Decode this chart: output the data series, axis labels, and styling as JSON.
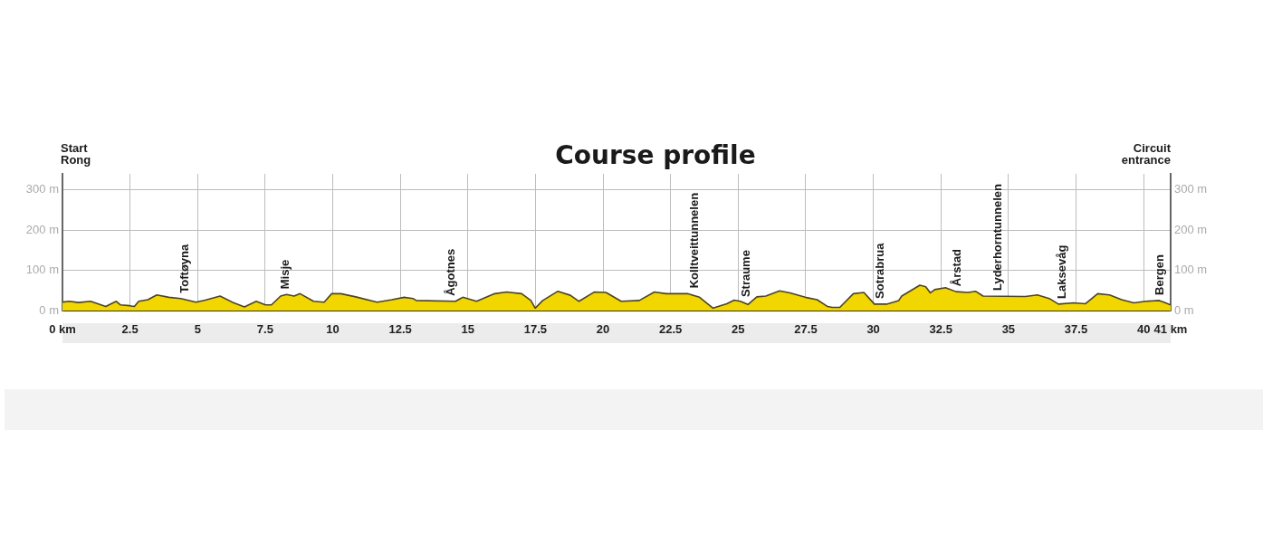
{
  "chart_data": {
    "type": "area",
    "title": "Course profile",
    "annotations": [
      "Start\nRong",
      "Circuit\nentrance",
      {
        "text": "Toftøyna",
        "x": 4.55,
        "y": 30
      },
      {
        "text": "Misje",
        "x": 8.27,
        "y": 40
      },
      {
        "text": "Ågotnes",
        "x": 14.4,
        "y": 23
      },
      {
        "text": "Kolltveittunnelen",
        "x": 23.4,
        "y": 42
      },
      {
        "text": "Straume",
        "x": 25.3,
        "y": 20
      },
      {
        "text": "Sotrabrua",
        "x": 30.25,
        "y": 16
      },
      {
        "text": "Årstad",
        "x": 33.1,
        "y": 47
      },
      {
        "text": "Lyderhorntunnelen",
        "x": 34.6,
        "y": 36
      },
      {
        "text": "Laksevåg",
        "x": 37.0,
        "y": 16
      },
      {
        "text": "Bergen",
        "x": 40.6,
        "y": 25
      }
    ],
    "series": [
      {
        "color": "#f2d600",
        "x": [
          0,
          0.26,
          0.59,
          1.04,
          1.6,
          1.99,
          2.15,
          2.49,
          2.66,
          2.82,
          3.16,
          3.49,
          3.94,
          4.38,
          4.94,
          5.28,
          5.83,
          6.28,
          6.73,
          7.17,
          7.51,
          7.73,
          8.07,
          8.29,
          8.57,
          8.79,
          9.29,
          9.68,
          9.96,
          10.3,
          10.85,
          11.64,
          12.19,
          12.64,
          12.97,
          13.09,
          14.54,
          14.81,
          15.32,
          15.99,
          16.43,
          16.99,
          17.33,
          17.49,
          17.77,
          18.33,
          18.79,
          19.11,
          19.67,
          20.11,
          20.67,
          21.34,
          21.9,
          22.34,
          23.13,
          23.57,
          24.07,
          24.58,
          24.85,
          25.08,
          25.36,
          25.69,
          26.02,
          26.53,
          26.92,
          27.48,
          27.92,
          28.31,
          28.48,
          28.76,
          29.26,
          29.65,
          30.04,
          30.49,
          30.94,
          31.05,
          31.72,
          31.94,
          32.11,
          32.27,
          32.67,
          33.06,
          33.5,
          33.78,
          34.06,
          35.62,
          36.07,
          36.51,
          36.85,
          37.4,
          37.85,
          38.3,
          38.74,
          39.19,
          39.64,
          40.08,
          40.58,
          40.75,
          41
        ],
        "values": [
          21,
          23,
          20,
          23,
          10,
          23,
          14,
          12,
          10,
          23,
          27,
          39,
          33,
          30,
          21,
          26,
          36,
          21,
          9,
          23,
          14,
          14,
          36,
          40,
          36,
          42,
          23,
          21,
          42,
          42,
          34,
          21,
          27,
          33,
          30,
          25,
          23,
          33,
          23,
          42,
          46,
          42,
          25,
          6,
          25,
          48,
          38,
          23,
          46,
          45,
          23,
          25,
          46,
          42,
          42,
          33,
          6,
          17,
          26,
          23,
          15,
          34,
          36,
          49,
          44,
          33,
          27,
          10,
          8,
          8,
          42,
          45,
          16,
          16,
          25,
          36,
          63,
          59,
          44,
          52,
          57,
          47,
          45,
          48,
          36,
          35,
          39,
          30,
          16,
          19,
          17,
          42,
          39,
          27,
          19,
          23,
          25,
          21,
          14
        ]
      }
    ],
    "xlim": [
      0,
      41
    ],
    "xticks": [
      {
        "value": 0,
        "label": "0 km"
      },
      2.5,
      5,
      7.5,
      10,
      12.5,
      15,
      17.5,
      20,
      22.5,
      25,
      27.5,
      30,
      32.5,
      35,
      37.5,
      40,
      {
        "value": 41,
        "label": "41 km"
      }
    ],
    "ylim": [
      0,
      340
    ],
    "yticks": [
      {
        "value": 0,
        "label": "0 m"
      },
      {
        "value": 100,
        "label": "100 m"
      },
      {
        "value": 200,
        "label": "200 m"
      },
      {
        "value": 300,
        "label": "300 m"
      }
    ],
    "y2lim": [
      0,
      340
    ],
    "y2ticks": [
      {
        "value": 0,
        "label": "0 m"
      },
      {
        "value": 100,
        "label": "100 m"
      },
      {
        "value": 200,
        "label": "200 m"
      },
      {
        "value": 300,
        "label": "300 m"
      }
    ],
    "grid": true
  }
}
